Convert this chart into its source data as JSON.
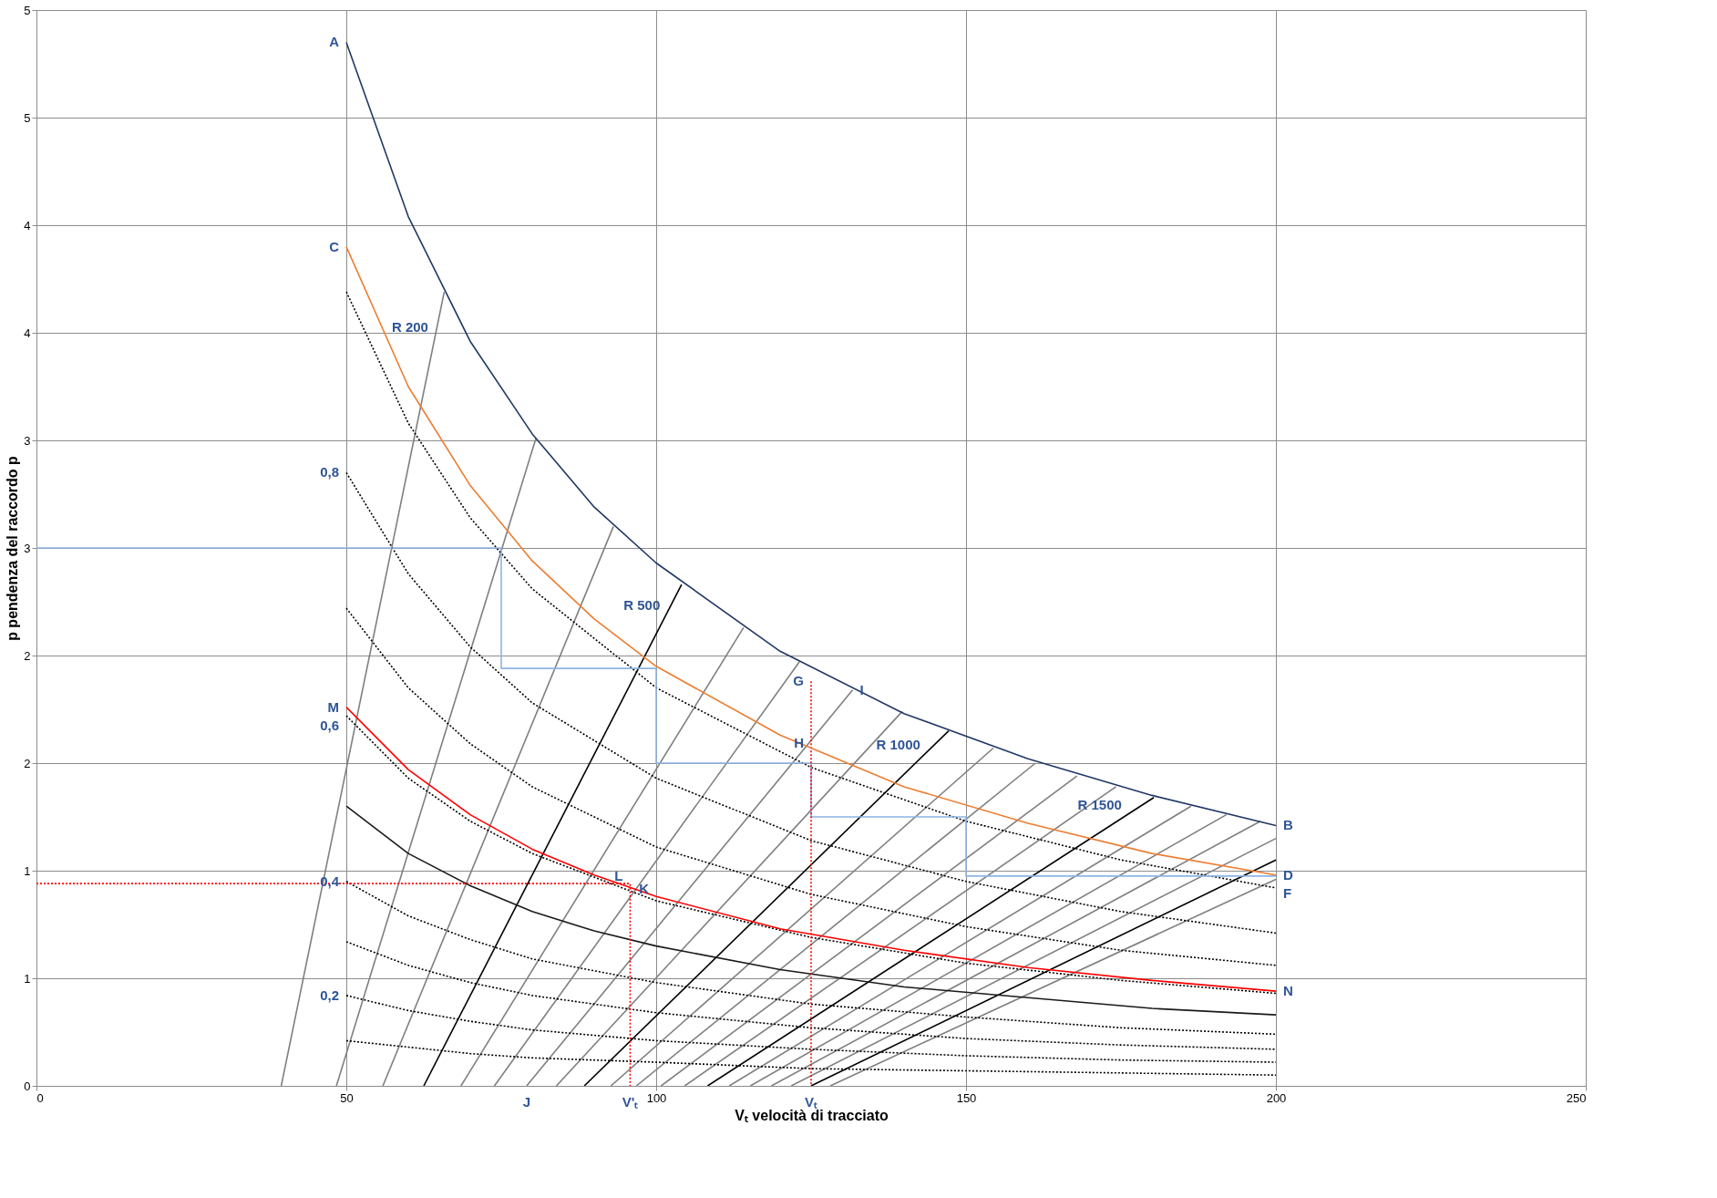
{
  "chart_data": {
    "type": "line",
    "xlabel": "Vₜ velocità di tracciato",
    "ylabel": "p pendenza del raccordo p",
    "xlim": [
      0,
      250
    ],
    "xticks": [
      0,
      50,
      100,
      150,
      200,
      250
    ],
    "ylim": [
      0,
      5
    ],
    "yticks": [
      {
        "value": 0,
        "label": "0"
      },
      {
        "value": 0.5,
        "label": "1"
      },
      {
        "value": 1,
        "label": "1"
      },
      {
        "value": 1.5,
        "label": "2"
      },
      {
        "value": 2,
        "label": "2"
      },
      {
        "value": 2.5,
        "label": "3"
      },
      {
        "value": 3,
        "label": "3"
      },
      {
        "value": 3.5,
        "label": "4"
      },
      {
        "value": 4,
        "label": "4"
      },
      {
        "value": 4.5,
        "label": "5"
      },
      {
        "value": 5,
        "label": "5"
      }
    ],
    "grid": true,
    "legend": false,
    "series": [
      {
        "color": "#7f7f7f",
        "x": [
          39.5,
          65.8
        ],
        "values": [
          0,
          3.69
        ]
      },
      {
        "color": "#7f7f7f",
        "x": [
          48.4,
          80.6
        ],
        "values": [
          0,
          3.01
        ]
      },
      {
        "color": "#7f7f7f",
        "x": [
          55.9,
          93.1
        ],
        "values": [
          0,
          2.6
        ]
      },
      {
        "color": "#000000",
        "x": [
          62.5,
          104.1
        ],
        "values": [
          0,
          2.33
        ]
      },
      {
        "color": "#7f7f7f",
        "x": [
          68.5,
          114.1
        ],
        "values": [
          0,
          2.13
        ]
      },
      {
        "color": "#7f7f7f",
        "x": [
          73.9,
          123.1
        ],
        "values": [
          0,
          1.97
        ]
      },
      {
        "color": "#7f7f7f",
        "x": [
          79.1,
          131.7
        ],
        "values": [
          0,
          1.84
        ]
      },
      {
        "color": "#7f7f7f",
        "x": [
          83.9,
          139.7
        ],
        "values": [
          0,
          1.74
        ]
      },
      {
        "color": "#000000",
        "x": [
          88.4,
          147.2
        ],
        "values": [
          0,
          1.65
        ]
      },
      {
        "color": "#7f7f7f",
        "x": [
          92.7,
          154.4
        ],
        "values": [
          0,
          1.57
        ]
      },
      {
        "color": "#7f7f7f",
        "x": [
          96.8,
          161.2
        ],
        "values": [
          0,
          1.5
        ]
      },
      {
        "color": "#7f7f7f",
        "x": [
          100.8,
          167.9
        ],
        "values": [
          0,
          1.44
        ]
      },
      {
        "color": "#7f7f7f",
        "x": [
          104.6,
          174.2
        ],
        "values": [
          0,
          1.39
        ]
      },
      {
        "color": "#000000",
        "x": [
          108.3,
          180.3
        ],
        "values": [
          0,
          1.34
        ]
      },
      {
        "color": "#7f7f7f",
        "x": [
          111.8,
          186.3
        ],
        "values": [
          0,
          1.3
        ]
      },
      {
        "color": "#7f7f7f",
        "x": [
          115.2,
          192.0
        ],
        "values": [
          0,
          1.26
        ]
      },
      {
        "color": "#7f7f7f",
        "x": [
          118.6,
          197.5
        ],
        "values": [
          0,
          1.23
        ]
      },
      {
        "color": "#7f7f7f",
        "x": [
          121.8,
          200
        ],
        "values": [
          0,
          1.15
        ]
      },
      {
        "color": "#000000",
        "x": [
          125.0,
          200
        ],
        "values": [
          0,
          1.05
        ]
      },
      {
        "color": "#7f7f7f",
        "x": [
          128.1,
          200
        ],
        "values": [
          0,
          0.96
        ]
      },
      {
        "color": "#000000",
        "line_style": "dotted",
        "x": [
          50,
          60,
          70,
          80,
          100,
          125,
          150,
          175,
          200
        ],
        "values": [
          3.69,
          3.08,
          2.64,
          2.31,
          1.85,
          1.48,
          1.23,
          1.05,
          0.92
        ]
      },
      {
        "color": "#000000",
        "line_style": "dotted",
        "x": [
          50,
          60,
          70,
          80,
          100,
          125,
          150,
          175,
          200
        ],
        "values": [
          2.85,
          2.38,
          2.04,
          1.78,
          1.43,
          1.14,
          0.95,
          0.81,
          0.71
        ]
      },
      {
        "color": "#000000",
        "line_style": "dotted",
        "x": [
          50,
          60,
          70,
          80,
          100,
          125,
          150,
          175,
          200
        ],
        "values": [
          2.22,
          1.85,
          1.59,
          1.39,
          1.11,
          0.89,
          0.74,
          0.63,
          0.56
        ]
      },
      {
        "color": "#000000",
        "line_style": "dotted",
        "x": [
          50,
          60,
          70,
          80,
          100,
          125,
          150,
          175,
          200
        ],
        "values": [
          1.72,
          1.43,
          1.23,
          1.08,
          0.86,
          0.69,
          0.57,
          0.49,
          0.43
        ]
      },
      {
        "color": "#000000",
        "line_style": "dotted",
        "x": [
          50,
          60,
          70,
          80,
          100,
          125,
          150,
          175,
          200
        ],
        "values": [
          0.95,
          0.79,
          0.68,
          0.59,
          0.48,
          0.38,
          0.32,
          0.27,
          0.24
        ]
      },
      {
        "color": "#000000",
        "line_style": "dotted",
        "x": [
          50,
          60,
          70,
          80,
          100,
          125,
          150,
          175,
          200
        ],
        "values": [
          0.67,
          0.56,
          0.48,
          0.42,
          0.34,
          0.27,
          0.22,
          0.19,
          0.17
        ]
      },
      {
        "color": "#000000",
        "line_style": "dotted",
        "x": [
          50,
          60,
          70,
          80,
          100,
          125,
          150,
          175,
          200
        ],
        "values": [
          0.42,
          0.35,
          0.3,
          0.26,
          0.21,
          0.17,
          0.14,
          0.12,
          0.11
        ]
      },
      {
        "color": "#000000",
        "line_style": "dotted",
        "x": [
          50,
          60,
          70,
          80,
          100,
          125,
          150,
          175,
          200
        ],
        "values": [
          0.21,
          0.18,
          0.15,
          0.13,
          0.11,
          0.08,
          0.07,
          0.06,
          0.05
        ]
      },
      {
        "color": "#1a1a1a",
        "x": [
          50,
          60,
          70,
          80,
          90,
          100,
          120,
          140,
          160,
          180,
          200
        ],
        "values": [
          1.3,
          1.08,
          0.93,
          0.81,
          0.72,
          0.65,
          0.54,
          0.46,
          0.41,
          0.36,
          0.33
        ]
      },
      {
        "color": "#8eb4e3",
        "x": [
          0,
          75,
          75,
          100,
          100,
          125,
          125,
          150,
          150,
          200
        ],
        "values": [
          2.5,
          2.5,
          1.94,
          1.94,
          1.5,
          1.5,
          1.25,
          1.25,
          0.975,
          0.975
        ]
      },
      {
        "color": "#ff0000",
        "line_style": "dotted",
        "x": [
          0,
          95.8,
          95.8
        ],
        "values": [
          0.94,
          0.94,
          0
        ]
      },
      {
        "color": "#ff0000",
        "line_style": "dotted",
        "x": [
          125,
          125
        ],
        "values": [
          1.88,
          0
        ]
      },
      {
        "color": "#ff0000",
        "x": [
          50,
          60,
          70,
          80,
          90,
          100,
          120,
          140,
          160,
          180,
          200
        ],
        "values": [
          1.76,
          1.47,
          1.26,
          1.1,
          0.98,
          0.88,
          0.73,
          0.63,
          0.55,
          0.49,
          0.44
        ]
      },
      {
        "color": "#ed7d31",
        "x": [
          50,
          60,
          70,
          80,
          90,
          100,
          120,
          140,
          160,
          180,
          200
        ],
        "values": [
          3.9,
          3.25,
          2.79,
          2.44,
          2.17,
          1.95,
          1.63,
          1.39,
          1.22,
          1.08,
          0.98
        ]
      },
      {
        "color": "#203864",
        "x": [
          50,
          60,
          70,
          80,
          90,
          100,
          120,
          140,
          160,
          180,
          200
        ],
        "values": [
          4.85,
          4.04,
          3.46,
          3.03,
          2.69,
          2.43,
          2.02,
          1.73,
          1.52,
          1.35,
          1.21
        ]
      }
    ],
    "annotations": [
      {
        "text": "A",
        "x": 50,
        "y": 4.85
      },
      {
        "text": "C",
        "x": 50,
        "y": 3.9
      },
      {
        "text": "0,8",
        "x": 50,
        "y": 2.85
      },
      {
        "text": "M",
        "x": 50,
        "y": 1.76
      },
      {
        "text": "0,6",
        "x": 50,
        "y": 1.72
      },
      {
        "text": "0,4",
        "x": 50,
        "y": 0.95
      },
      {
        "text": "0,2",
        "x": 50,
        "y": 0.42
      },
      {
        "text": "R 200",
        "x": 64.4,
        "y": 3.49
      },
      {
        "text": "R 500",
        "x": 101.8,
        "y": 2.2
      },
      {
        "text": "G",
        "x": 125,
        "y": 1.88
      },
      {
        "text": "I",
        "x": 131.7,
        "y": 1.84
      },
      {
        "text": "H",
        "x": 125,
        "y": 1.56
      },
      {
        "text": "R 1000",
        "x": 143.8,
        "y": 1.55
      },
      {
        "text": "R 1500",
        "x": 176.3,
        "y": 1.27
      },
      {
        "text": "B",
        "x": 200,
        "y": 1.21
      },
      {
        "text": "D",
        "x": 200,
        "y": 0.98
      },
      {
        "text": "F",
        "x": 200,
        "y": 0.92
      },
      {
        "text": "N",
        "x": 200,
        "y": 0.44
      },
      {
        "text": "L",
        "x": 95.8,
        "y": 0.94
      },
      {
        "text": "K",
        "x": 100,
        "y": 0.88
      },
      {
        "text": "J",
        "x": 79.1,
        "y": 0
      },
      {
        "text": "V'ₜ",
        "x": 95.8,
        "y": 0
      },
      {
        "text": "Vₜ",
        "x": 125,
        "y": 0
      }
    ]
  }
}
